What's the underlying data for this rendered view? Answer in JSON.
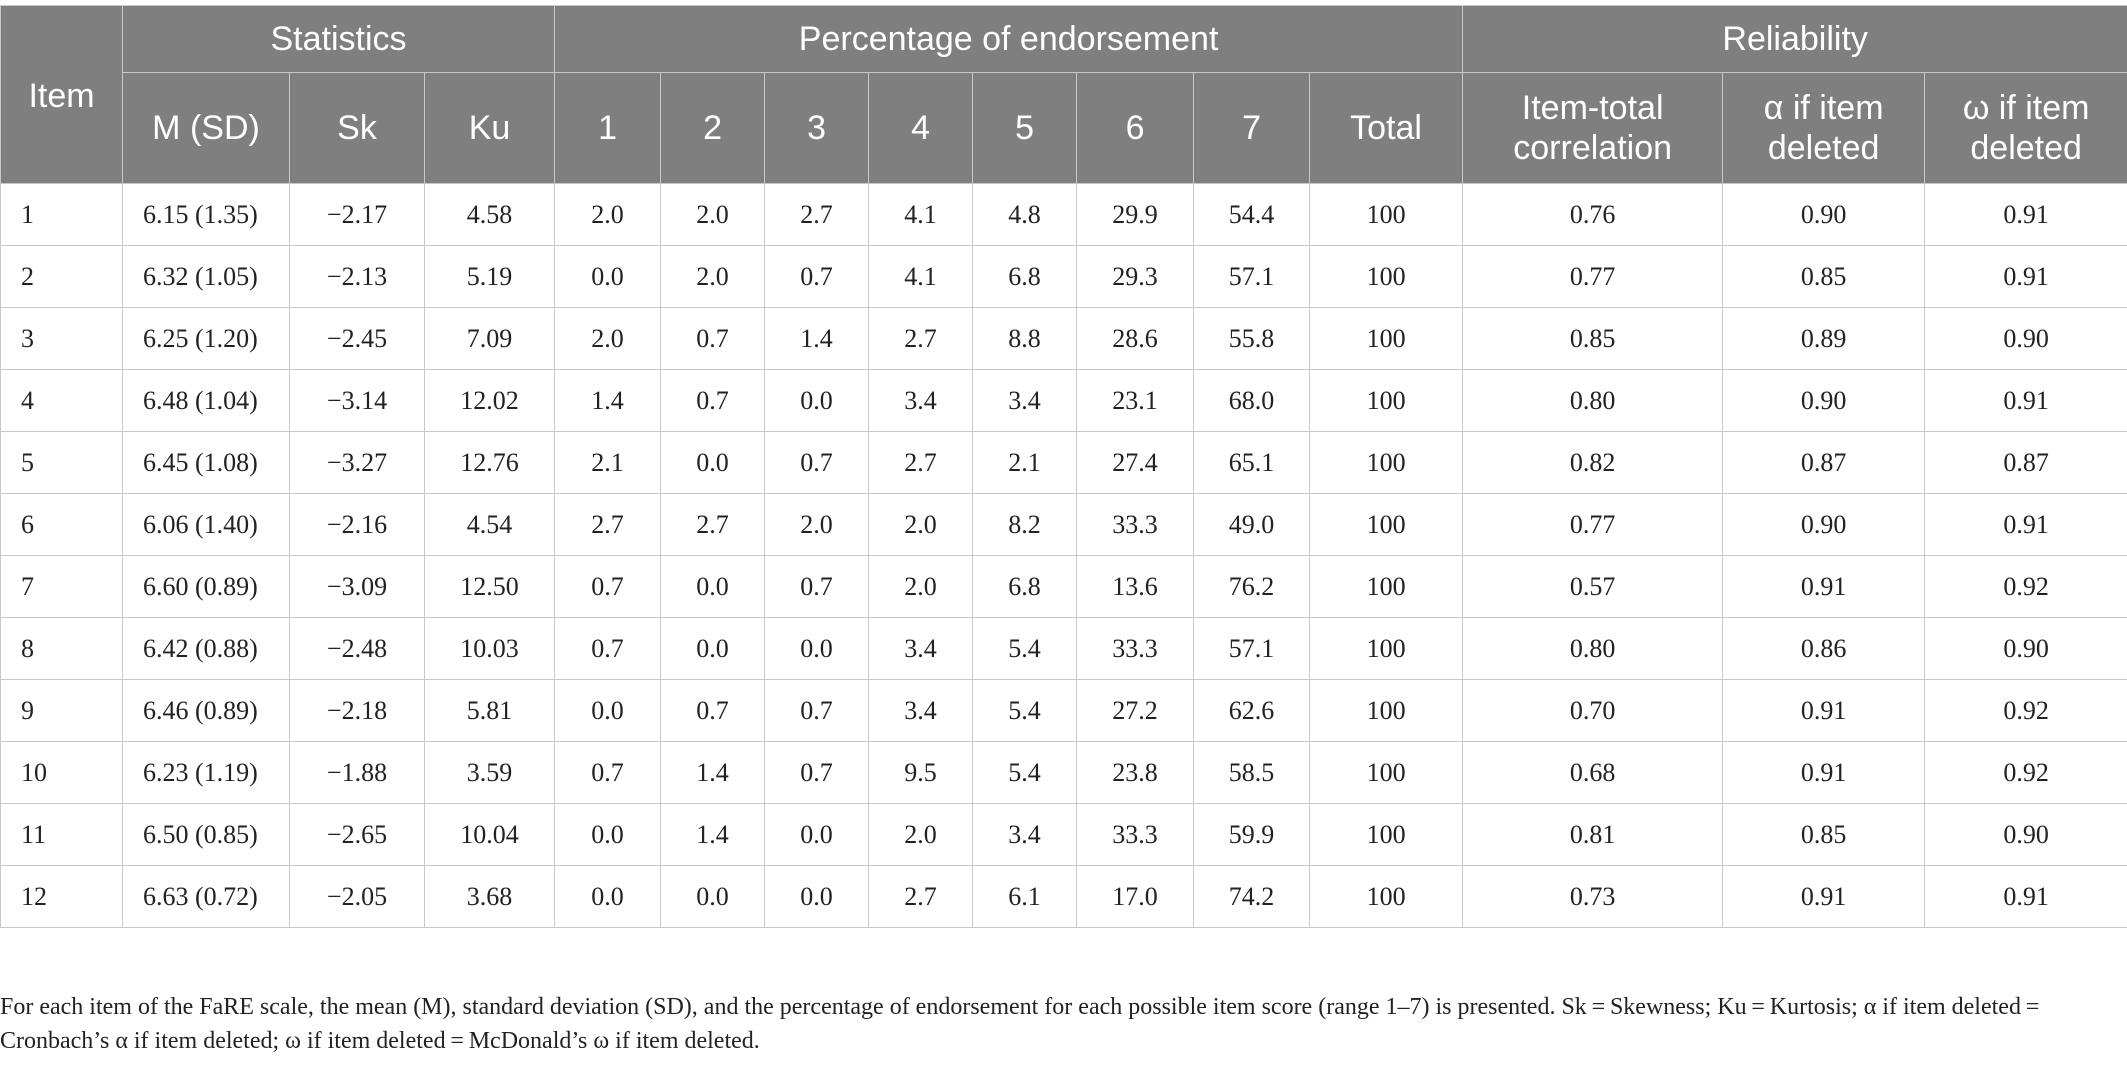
{
  "table": {
    "headers": {
      "item": "Item",
      "groups": {
        "statistics": "Statistics",
        "endorsement": "Percentage of endorsement",
        "reliability": "Reliability"
      },
      "columns": [
        "M (SD)",
        "Sk",
        "Ku",
        "1",
        "2",
        "3",
        "4",
        "5",
        "6",
        "7",
        "Total",
        "Item-total correlation",
        "α if item deleted",
        "ω if item deleted"
      ]
    },
    "rows": [
      [
        "1",
        "6.15 (1.35)",
        "−2.17",
        "4.58",
        "2.0",
        "2.0",
        "2.7",
        "4.1",
        "4.8",
        "29.9",
        "54.4",
        "100",
        "0.76",
        "0.90",
        "0.91"
      ],
      [
        "2",
        "6.32 (1.05)",
        "−2.13",
        "5.19",
        "0.0",
        "2.0",
        "0.7",
        "4.1",
        "6.8",
        "29.3",
        "57.1",
        "100",
        "0.77",
        "0.85",
        "0.91"
      ],
      [
        "3",
        "6.25 (1.20)",
        "−2.45",
        "7.09",
        "2.0",
        "0.7",
        "1.4",
        "2.7",
        "8.8",
        "28.6",
        "55.8",
        "100",
        "0.85",
        "0.89",
        "0.90"
      ],
      [
        "4",
        "6.48 (1.04)",
        "−3.14",
        "12.02",
        "1.4",
        "0.7",
        "0.0",
        "3.4",
        "3.4",
        "23.1",
        "68.0",
        "100",
        "0.80",
        "0.90",
        "0.91"
      ],
      [
        "5",
        "6.45 (1.08)",
        "−3.27",
        "12.76",
        "2.1",
        "0.0",
        "0.7",
        "2.7",
        "2.1",
        "27.4",
        "65.1",
        "100",
        "0.82",
        "0.87",
        "0.87"
      ],
      [
        "6",
        "6.06 (1.40)",
        "−2.16",
        "4.54",
        "2.7",
        "2.7",
        "2.0",
        "2.0",
        "8.2",
        "33.3",
        "49.0",
        "100",
        "0.77",
        "0.90",
        "0.91"
      ],
      [
        "7",
        "6.60 (0.89)",
        "−3.09",
        "12.50",
        "0.7",
        "0.0",
        "0.7",
        "2.0",
        "6.8",
        "13.6",
        "76.2",
        "100",
        "0.57",
        "0.91",
        "0.92"
      ],
      [
        "8",
        "6.42 (0.88)",
        "−2.48",
        "10.03",
        "0.7",
        "0.0",
        "0.0",
        "3.4",
        "5.4",
        "33.3",
        "57.1",
        "100",
        "0.80",
        "0.86",
        "0.90"
      ],
      [
        "9",
        "6.46 (0.89)",
        "−2.18",
        "5.81",
        "0.0",
        "0.7",
        "0.7",
        "3.4",
        "5.4",
        "27.2",
        "62.6",
        "100",
        "0.70",
        "0.91",
        "0.92"
      ],
      [
        "10",
        "6.23 (1.19)",
        "−1.88",
        "3.59",
        "0.7",
        "1.4",
        "0.7",
        "9.5",
        "5.4",
        "23.8",
        "58.5",
        "100",
        "0.68",
        "0.91",
        "0.92"
      ],
      [
        "11",
        "6.50 (0.85)",
        "−2.65",
        "10.04",
        "0.0",
        "1.4",
        "0.0",
        "2.0",
        "3.4",
        "33.3",
        "59.9",
        "100",
        "0.81",
        "0.85",
        "0.90"
      ],
      [
        "12",
        "6.63 (0.72)",
        "−2.05",
        "3.68",
        "0.0",
        "0.0",
        "0.0",
        "2.7",
        "6.1",
        "17.0",
        "74.2",
        "100",
        "0.73",
        "0.91",
        "0.91"
      ]
    ]
  },
  "footnote": "For each item of the FaRE scale, the mean (M), standard deviation (SD), and the percentage of endorsement for each possible item score (range 1–7) is presented. Sk = Skewness; Ku = Kurtosis; α if item deleted = Cronbach’s α if item deleted; ω if item deleted = McDonald’s ω if item deleted."
}
